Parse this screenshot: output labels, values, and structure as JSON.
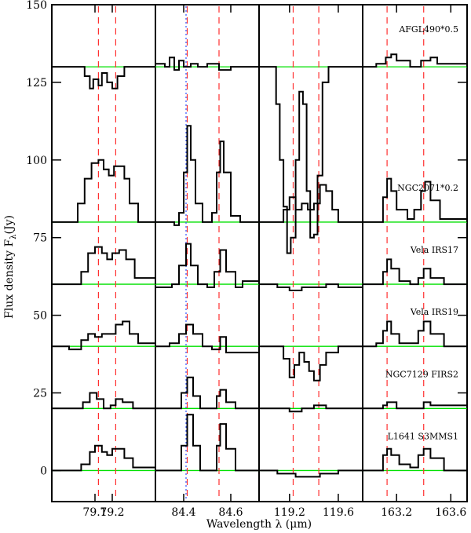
{
  "chart_data": {
    "type": "line",
    "xlabel": "Wavelength λ (μm)",
    "ylabel": "Flux density F",
    "ylabel_subscript": "λ",
    "ylabel_unit": "(Jy)",
    "ylim": [
      -10,
      150
    ],
    "yticks": [
      0,
      25,
      50,
      75,
      100,
      125,
      150
    ],
    "colors": {
      "spectrum": "#000000",
      "continuum": "#00e000",
      "line_marker": "#ff3030",
      "dotted_marker": "#3050ff"
    },
    "panels": [
      {
        "id": "p79",
        "xlim": [
          78.85,
          79.45
        ],
        "xticks": [
          79.1,
          79.2
        ],
        "xtick_labels": [
          "79.1",
          "79.2"
        ],
        "line_markers": [
          79.12,
          79.22
        ]
      },
      {
        "id": "p84",
        "xlim": [
          84.28,
          84.72
        ],
        "xticks": [
          84.4,
          84.6
        ],
        "xtick_labels": [
          "84.4",
          "84.6"
        ],
        "line_markers": [
          84.415,
          84.55
        ],
        "dotted_markers": [
          84.41
        ]
      },
      {
        "id": "p119",
        "xlim": [
          118.95,
          119.8
        ],
        "xticks": [
          119.2,
          119.6
        ],
        "xtick_labels": [
          "119.2",
          "119.6"
        ],
        "line_markers": [
          119.23,
          119.44
        ]
      },
      {
        "id": "p163",
        "xlim": [
          162.95,
          163.72
        ],
        "xticks": [
          163.2,
          163.6
        ],
        "xtick_labels": [
          "163.2",
          "163.6"
        ],
        "line_markers": [
          163.13,
          163.4
        ]
      }
    ],
    "series": [
      {
        "name": "AFGL490*0.5",
        "baseline": 130,
        "p79": [
          [
            78.85,
            130
          ],
          [
            79.02,
            130
          ],
          [
            79.04,
            127
          ],
          [
            79.07,
            123
          ],
          [
            79.09,
            126
          ],
          [
            79.12,
            124
          ],
          [
            79.14,
            128
          ],
          [
            79.17,
            125
          ],
          [
            79.2,
            123
          ],
          [
            79.23,
            127
          ],
          [
            79.27,
            130
          ],
          [
            79.45,
            130
          ]
        ],
        "p84": [
          [
            84.28,
            131
          ],
          [
            84.32,
            130
          ],
          [
            84.34,
            133
          ],
          [
            84.36,
            129
          ],
          [
            84.38,
            132
          ],
          [
            84.4,
            130
          ],
          [
            84.43,
            131
          ],
          [
            84.46,
            130
          ],
          [
            84.5,
            131
          ],
          [
            84.55,
            129
          ],
          [
            84.6,
            130
          ],
          [
            84.72,
            130
          ]
        ],
        "p119": [
          [
            118.95,
            130
          ],
          [
            119.05,
            130
          ],
          [
            119.09,
            118
          ],
          [
            119.12,
            100
          ],
          [
            119.15,
            85
          ],
          [
            119.18,
            70
          ],
          [
            119.21,
            75
          ],
          [
            119.25,
            100
          ],
          [
            119.28,
            122
          ],
          [
            119.31,
            118
          ],
          [
            119.34,
            90
          ],
          [
            119.37,
            75
          ],
          [
            119.4,
            76
          ],
          [
            119.43,
            95
          ],
          [
            119.47,
            125
          ],
          [
            119.52,
            130
          ],
          [
            119.8,
            130
          ]
        ],
        "p163": [
          [
            162.95,
            130
          ],
          [
            163.05,
            131
          ],
          [
            163.12,
            133
          ],
          [
            163.16,
            134
          ],
          [
            163.2,
            132
          ],
          [
            163.3,
            130
          ],
          [
            163.38,
            132
          ],
          [
            163.45,
            133
          ],
          [
            163.5,
            131
          ],
          [
            163.72,
            130
          ]
        ]
      },
      {
        "name": "NGC2071*0.2",
        "baseline": 80,
        "p79": [
          [
            78.85,
            80
          ],
          [
            78.95,
            80
          ],
          [
            79.0,
            86
          ],
          [
            79.04,
            94
          ],
          [
            79.08,
            99
          ],
          [
            79.12,
            100
          ],
          [
            79.15,
            97
          ],
          [
            79.18,
            95
          ],
          [
            79.21,
            98
          ],
          [
            79.24,
            98
          ],
          [
            79.27,
            94
          ],
          [
            79.3,
            86
          ],
          [
            79.35,
            80
          ],
          [
            79.45,
            80
          ]
        ],
        "p84": [
          [
            84.28,
            80
          ],
          [
            84.36,
            79
          ],
          [
            84.38,
            83
          ],
          [
            84.4,
            96
          ],
          [
            84.415,
            111
          ],
          [
            84.43,
            100
          ],
          [
            84.45,
            86
          ],
          [
            84.48,
            80
          ],
          [
            84.52,
            83
          ],
          [
            84.54,
            96
          ],
          [
            84.555,
            106
          ],
          [
            84.57,
            96
          ],
          [
            84.6,
            82
          ],
          [
            84.64,
            80
          ],
          [
            84.72,
            80
          ]
        ],
        "p119": [
          [
            118.95,
            80
          ],
          [
            119.1,
            80
          ],
          [
            119.15,
            84
          ],
          [
            119.2,
            88
          ],
          [
            119.25,
            84
          ],
          [
            119.3,
            86
          ],
          [
            119.35,
            84
          ],
          [
            119.4,
            86
          ],
          [
            119.45,
            92
          ],
          [
            119.5,
            90
          ],
          [
            119.55,
            84
          ],
          [
            119.6,
            80
          ],
          [
            119.8,
            80
          ]
        ],
        "p163": [
          [
            162.95,
            80
          ],
          [
            163.05,
            80
          ],
          [
            163.1,
            88
          ],
          [
            163.13,
            94
          ],
          [
            163.16,
            90
          ],
          [
            163.2,
            84
          ],
          [
            163.28,
            81
          ],
          [
            163.33,
            84
          ],
          [
            163.38,
            90
          ],
          [
            163.41,
            93
          ],
          [
            163.45,
            87
          ],
          [
            163.52,
            81
          ],
          [
            163.72,
            80
          ]
        ]
      },
      {
        "name": "Vela  IRS17",
        "baseline": 60,
        "p79": [
          [
            78.85,
            60
          ],
          [
            78.98,
            60
          ],
          [
            79.02,
            64
          ],
          [
            79.06,
            70
          ],
          [
            79.1,
            72
          ],
          [
            79.14,
            70
          ],
          [
            79.17,
            68
          ],
          [
            79.2,
            70
          ],
          [
            79.24,
            71
          ],
          [
            79.28,
            68
          ],
          [
            79.33,
            62
          ],
          [
            79.45,
            60
          ]
        ],
        "p84": [
          [
            84.28,
            59
          ],
          [
            84.35,
            60
          ],
          [
            84.38,
            66
          ],
          [
            84.41,
            73
          ],
          [
            84.43,
            66
          ],
          [
            84.46,
            60
          ],
          [
            84.5,
            59
          ],
          [
            84.53,
            64
          ],
          [
            84.555,
            71
          ],
          [
            84.58,
            64
          ],
          [
            84.62,
            59
          ],
          [
            84.65,
            61
          ],
          [
            84.72,
            60
          ]
        ],
        "p119": [
          [
            118.95,
            60
          ],
          [
            119.1,
            59
          ],
          [
            119.2,
            58
          ],
          [
            119.3,
            59
          ],
          [
            119.4,
            59
          ],
          [
            119.5,
            60
          ],
          [
            119.6,
            59
          ],
          [
            119.8,
            60
          ]
        ],
        "p163": [
          [
            162.95,
            60
          ],
          [
            163.05,
            60
          ],
          [
            163.1,
            64
          ],
          [
            163.13,
            68
          ],
          [
            163.16,
            65
          ],
          [
            163.22,
            61
          ],
          [
            163.3,
            60
          ],
          [
            163.36,
            62
          ],
          [
            163.4,
            65
          ],
          [
            163.45,
            62
          ],
          [
            163.55,
            60
          ],
          [
            163.72,
            60
          ]
        ]
      },
      {
        "name": "Vela  IRS19",
        "baseline": 40,
        "p79": [
          [
            78.85,
            40
          ],
          [
            78.95,
            39
          ],
          [
            79.02,
            42
          ],
          [
            79.06,
            44
          ],
          [
            79.1,
            43
          ],
          [
            79.14,
            44
          ],
          [
            79.18,
            44
          ],
          [
            79.22,
            47
          ],
          [
            79.26,
            48
          ],
          [
            79.3,
            44
          ],
          [
            79.35,
            41
          ],
          [
            79.45,
            40
          ]
        ],
        "p84": [
          [
            84.28,
            40
          ],
          [
            84.34,
            41
          ],
          [
            84.38,
            44
          ],
          [
            84.41,
            47
          ],
          [
            84.44,
            44
          ],
          [
            84.48,
            40
          ],
          [
            84.52,
            39
          ],
          [
            84.555,
            43
          ],
          [
            84.58,
            38
          ],
          [
            84.62,
            38
          ],
          [
            84.72,
            40
          ]
        ],
        "p119": [
          [
            118.95,
            40
          ],
          [
            119.1,
            40
          ],
          [
            119.15,
            36
          ],
          [
            119.2,
            30
          ],
          [
            119.24,
            34
          ],
          [
            119.28,
            38
          ],
          [
            119.32,
            35
          ],
          [
            119.36,
            32
          ],
          [
            119.4,
            29
          ],
          [
            119.45,
            34
          ],
          [
            119.5,
            38
          ],
          [
            119.6,
            40
          ],
          [
            119.8,
            40
          ]
        ],
        "p163": [
          [
            162.95,
            40
          ],
          [
            163.05,
            41
          ],
          [
            163.1,
            45
          ],
          [
            163.13,
            48
          ],
          [
            163.16,
            44
          ],
          [
            163.22,
            41
          ],
          [
            163.3,
            41
          ],
          [
            163.36,
            45
          ],
          [
            163.4,
            48
          ],
          [
            163.45,
            44
          ],
          [
            163.55,
            40
          ],
          [
            163.72,
            40
          ]
        ]
      },
      {
        "name": "NGC7129  FIRS2",
        "baseline": 20,
        "p79": [
          [
            78.85,
            20
          ],
          [
            78.98,
            20
          ],
          [
            79.03,
            22
          ],
          [
            79.07,
            25
          ],
          [
            79.11,
            23
          ],
          [
            79.15,
            20
          ],
          [
            79.19,
            21
          ],
          [
            79.22,
            23
          ],
          [
            79.26,
            22
          ],
          [
            79.32,
            20
          ],
          [
            79.45,
            20
          ]
        ],
        "p84": [
          [
            84.28,
            20
          ],
          [
            84.36,
            20
          ],
          [
            84.39,
            25
          ],
          [
            84.415,
            30
          ],
          [
            84.44,
            24
          ],
          [
            84.47,
            20
          ],
          [
            84.52,
            20
          ],
          [
            84.54,
            24
          ],
          [
            84.555,
            26
          ],
          [
            84.58,
            22
          ],
          [
            84.62,
            20
          ],
          [
            84.72,
            20
          ]
        ],
        "p119": [
          [
            118.95,
            20
          ],
          [
            119.2,
            19
          ],
          [
            119.3,
            20
          ],
          [
            119.4,
            21
          ],
          [
            119.5,
            20
          ],
          [
            119.8,
            20
          ]
        ],
        "p163": [
          [
            162.95,
            20
          ],
          [
            163.05,
            20
          ],
          [
            163.1,
            21
          ],
          [
            163.13,
            22
          ],
          [
            163.2,
            20
          ],
          [
            163.3,
            20
          ],
          [
            163.4,
            22
          ],
          [
            163.45,
            21
          ],
          [
            163.72,
            20
          ]
        ]
      },
      {
        "name": "L1641  S3MMS1",
        "baseline": 0,
        "p79": [
          [
            78.85,
            0
          ],
          [
            78.97,
            0
          ],
          [
            79.02,
            2
          ],
          [
            79.07,
            6
          ],
          [
            79.1,
            8
          ],
          [
            79.14,
            6
          ],
          [
            79.17,
            5
          ],
          [
            79.2,
            7
          ],
          [
            79.24,
            7
          ],
          [
            79.27,
            4
          ],
          [
            79.32,
            1
          ],
          [
            79.45,
            0
          ]
        ],
        "p84": [
          [
            84.28,
            0
          ],
          [
            84.36,
            0
          ],
          [
            84.39,
            8
          ],
          [
            84.415,
            18
          ],
          [
            84.44,
            8
          ],
          [
            84.47,
            0
          ],
          [
            84.52,
            0
          ],
          [
            84.54,
            8
          ],
          [
            84.555,
            15
          ],
          [
            84.58,
            7
          ],
          [
            84.62,
            0
          ],
          [
            84.72,
            0
          ]
        ],
        "p119": [
          [
            118.95,
            0
          ],
          [
            119.1,
            -1
          ],
          [
            119.25,
            -2
          ],
          [
            119.35,
            -2
          ],
          [
            119.45,
            -1
          ],
          [
            119.6,
            0
          ],
          [
            119.8,
            0
          ]
        ],
        "p163": [
          [
            162.95,
            0
          ],
          [
            163.05,
            0
          ],
          [
            163.1,
            5
          ],
          [
            163.13,
            7
          ],
          [
            163.16,
            5
          ],
          [
            163.22,
            2
          ],
          [
            163.3,
            1
          ],
          [
            163.36,
            5
          ],
          [
            163.4,
            7
          ],
          [
            163.45,
            4
          ],
          [
            163.55,
            0
          ],
          [
            163.72,
            0
          ]
        ]
      }
    ]
  }
}
